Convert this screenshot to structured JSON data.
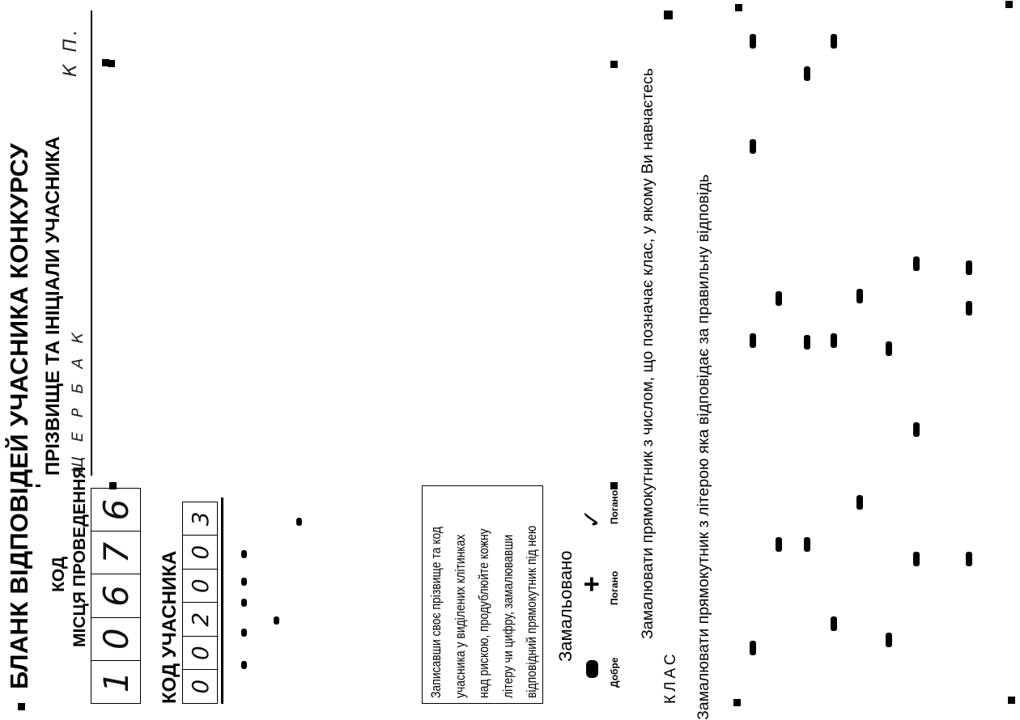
{
  "form": {
    "title": "БЛАНК ВІДПОВІДЕЙ УЧАСНИКА КОНКУРСУ",
    "venue_code_label_line1": "КОД",
    "venue_code_label_line2": "МІСЦЯ ПРОВЕДЕННЯ",
    "venue_code_digits": [
      "1",
      "0",
      "6",
      "7",
      "6"
    ],
    "participant_code_label": "КОД УЧАСНИКА",
    "participant_code_digits": [
      "0",
      "0",
      "2",
      "0",
      "0",
      "3"
    ],
    "name_label": "ПРІЗВИЩЕ ТА ІНІЦІАЛИ УЧАСНИКА",
    "surname_handwritten": "Щ Е Р Б А К",
    "initials_handwritten": "К П.",
    "instructions_lines": [
      "Записавши своє прізвище та код",
      "учасника у виділених клітинках",
      "над рискою, продублюйте кожну",
      "літеру чи цифру, замалювавши",
      "відповідний прямокутник під нею"
    ],
    "marked_title": "Замальовано",
    "examples": {
      "good_label": "Добре",
      "bad_label_1": "Погано",
      "bad_label_2": "Погано",
      "plus_symbol": "+",
      "check_symbol": "✓"
    },
    "class_prompt": "Замалювати прямокутник з числом, що позначає клас, у якому Ви навчаєтесь",
    "class_label": "КЛАС",
    "answer_prompt": "Замалювати прямокутник з літерою яка відповідає за правильну відповідь"
  }
}
